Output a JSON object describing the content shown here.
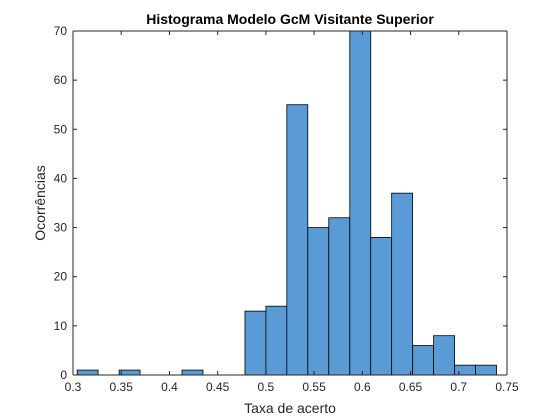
{
  "chart_data": {
    "type": "bar",
    "title": "Histograma Modelo GcM Visitante Superior",
    "xlabel": "Taxa de acerto",
    "ylabel": "Ocorrências",
    "xlim": [
      0.3,
      0.75
    ],
    "ylim": [
      0,
      70
    ],
    "xticks": [
      "0.3",
      "0.35",
      "0.4",
      "0.45",
      "0.5",
      "0.55",
      "0.6",
      "0.65",
      "0.7",
      "0.75"
    ],
    "yticks": [
      "0",
      "10",
      "20",
      "30",
      "40",
      "50",
      "60",
      "70"
    ],
    "bin_width": 0.02174,
    "bins": [
      {
        "x0": 0.3043,
        "count": 1
      },
      {
        "x0": 0.3261,
        "count": 0
      },
      {
        "x0": 0.3478,
        "count": 1
      },
      {
        "x0": 0.3696,
        "count": 0
      },
      {
        "x0": 0.3913,
        "count": 0
      },
      {
        "x0": 0.413,
        "count": 1
      },
      {
        "x0": 0.4348,
        "count": 0
      },
      {
        "x0": 0.4565,
        "count": 0
      },
      {
        "x0": 0.4783,
        "count": 13
      },
      {
        "x0": 0.5,
        "count": 14
      },
      {
        "x0": 0.5217,
        "count": 55
      },
      {
        "x0": 0.5435,
        "count": 30
      },
      {
        "x0": 0.5652,
        "count": 32
      },
      {
        "x0": 0.587,
        "count": 70
      },
      {
        "x0": 0.6087,
        "count": 28
      },
      {
        "x0": 0.6304,
        "count": 37
      },
      {
        "x0": 0.6522,
        "count": 6
      },
      {
        "x0": 0.6739,
        "count": 8
      },
      {
        "x0": 0.6957,
        "count": 2
      },
      {
        "x0": 0.7174,
        "count": 2
      }
    ],
    "grid": false,
    "colors": {
      "bar_fill": "#5b9bd5",
      "bar_edge": "#000000",
      "axis": "#262626"
    }
  }
}
